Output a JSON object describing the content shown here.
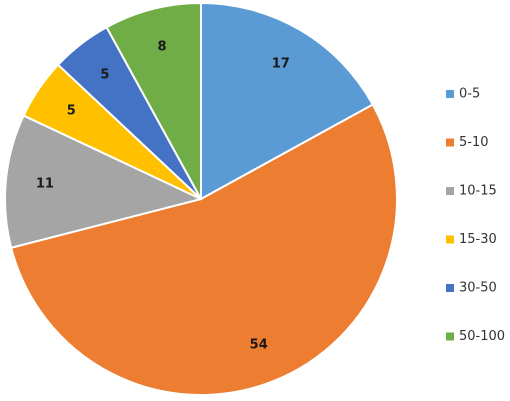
{
  "chart_data": {
    "type": "pie",
    "title": "",
    "categories": [
      "0-5",
      "5-10",
      "10-15",
      "15-30",
      "30-50",
      "50-100"
    ],
    "values": [
      17,
      54,
      11,
      5,
      5,
      8
    ],
    "colors": [
      "#5b9bd5",
      "#ed7d31",
      "#a5a5a5",
      "#ffc000",
      "#4472c4",
      "#70ad47"
    ],
    "show_data_labels": true,
    "legend_position": "right",
    "start_angle_deg": 0,
    "direction": "clockwise"
  }
}
